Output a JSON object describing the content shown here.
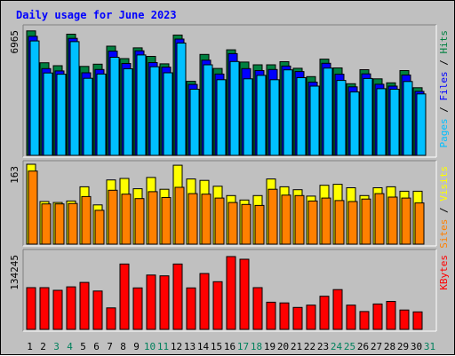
{
  "chart_data": {
    "type": "bar",
    "title": "Daily usage for June 2023",
    "categories": [
      "1",
      "2",
      "3",
      "4",
      "5",
      "6",
      "7",
      "8",
      "9",
      "10",
      "11",
      "12",
      "13",
      "14",
      "15",
      "16",
      "17",
      "18",
      "19",
      "20",
      "21",
      "22",
      "23",
      "24",
      "25",
      "26",
      "27",
      "28",
      "29",
      "30",
      "31"
    ],
    "weekend_days": [
      "3",
      "4",
      "10",
      "11",
      "17",
      "18",
      "24",
      "25",
      "31"
    ],
    "panels": [
      {
        "id": "hits",
        "scale_label": "6965",
        "ymax": 6965,
        "legend": [
          "Pages",
          "Files",
          "Hits"
        ],
        "series": [
          {
            "name": "Hits",
            "color": "#008040",
            "values": [
              6830,
              5080,
              4920,
              6650,
              4880,
              5000,
              5990,
              5310,
              5900,
              5430,
              5020,
              6600,
              4060,
              5540,
              4770,
              5790,
              5120,
              4970,
              4970,
              5140,
              4780,
              4320,
              5280,
              4800,
              3930,
              4700,
              4200,
              3980,
              4650,
              3710,
              0
            ]
          },
          {
            "name": "Files",
            "color": "#0000ff",
            "values": [
              6530,
              4760,
              4630,
              6420,
              4530,
              4710,
              5720,
              5040,
              5740,
              5090,
              4840,
              6380,
              3890,
              5220,
              4460,
              5580,
              4760,
              4650,
              4710,
              4900,
              4600,
              4020,
              5050,
              4450,
              3760,
              4470,
              3900,
              3800,
              4410,
              3510,
              0
            ]
          },
          {
            "name": "Pages",
            "color": "#00c0ff",
            "values": [
              6280,
              4520,
              4450,
              6240,
              4230,
              4460,
              5380,
              4750,
              5510,
              4860,
              4530,
              6160,
              3630,
              4970,
              4150,
              5150,
              4200,
              4390,
              4150,
              4690,
              4260,
              3800,
              4790,
              4110,
              3480,
              4220,
              3660,
              3630,
              4050,
              3370,
              0
            ]
          }
        ]
      },
      {
        "id": "visits",
        "scale_label": "163",
        "ymax": 163,
        "legend": [
          "Sites",
          "Visits"
        ],
        "series": [
          {
            "name": "Visits",
            "color": "#ffff00",
            "values": [
              163,
              87,
              85,
              88,
              117,
              80,
              131,
              134,
              113,
              136,
              112,
              161,
              133,
              130,
              118,
              99,
              90,
              99,
              133,
              117,
              111,
              98,
              120,
              122,
              115,
              99,
              115,
              117,
              108,
              108,
              0
            ]
          },
          {
            "name": "Sites",
            "color": "#ff8000",
            "values": [
              149,
              82,
              82,
              83,
              97,
              69,
              110,
              102,
              93,
              107,
              95,
              116,
              103,
              102,
              94,
              85,
              81,
              79,
              112,
              100,
              99,
              88,
              94,
              89,
              87,
              92,
              103,
              96,
              94,
              84,
              0
            ]
          }
        ]
      },
      {
        "id": "kbytes",
        "scale_label": "134245",
        "ymax": 134245,
        "legend": [
          "KBytes"
        ],
        "series": [
          {
            "name": "KBytes",
            "color": "#ff0000",
            "values": [
              73400,
              73400,
              68700,
              74700,
              82600,
              67400,
              37700,
              114900,
              72900,
              95500,
              94200,
              114900,
              72900,
              98200,
              83900,
              128000,
              123300,
              73400,
              47800,
              46500,
              38600,
              42600,
              58200,
              69900,
              42600,
              31400,
              44600,
              49100,
              34000,
              30700,
              0
            ]
          }
        ]
      }
    ],
    "colors": {
      "title": "#0000ff",
      "weekday_label": "#000000",
      "weekend_label": "#00805c",
      "panel_bg": "#c0c0c0"
    }
  }
}
